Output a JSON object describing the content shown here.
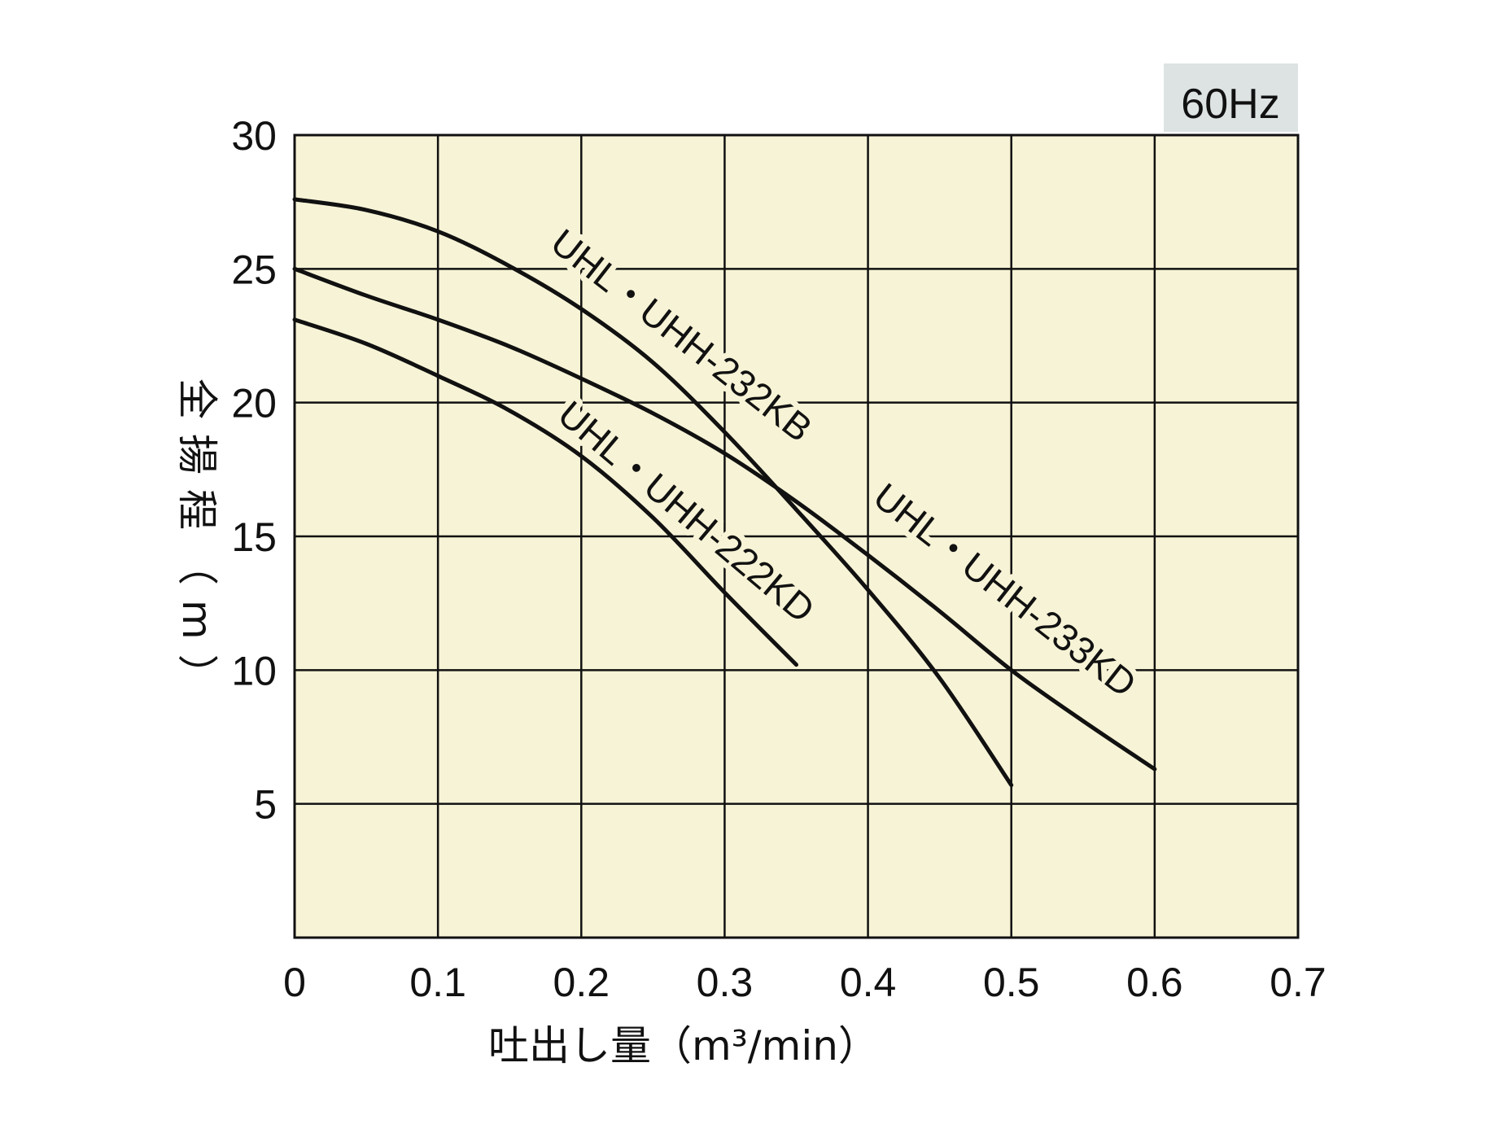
{
  "chart_data": {
    "type": "line",
    "badge": "60Hz",
    "xlabel": "吐出し量（m³/min）",
    "ylabel": "全揚程（m）",
    "xlim": [
      0,
      0.7
    ],
    "ylim": [
      0,
      30
    ],
    "x_ticks": [
      "0",
      "0.1",
      "0.2",
      "0.3",
      "0.4",
      "0.5",
      "0.6",
      "0.7"
    ],
    "y_ticks": [
      "5",
      "10",
      "15",
      "20",
      "25",
      "30"
    ],
    "grid": true,
    "series": [
      {
        "name": "UHL・UHH-232KB",
        "points": [
          [
            0,
            27.6
          ],
          [
            0.05,
            27.2
          ],
          [
            0.1,
            26.4
          ],
          [
            0.15,
            25.1
          ],
          [
            0.2,
            23.5
          ],
          [
            0.25,
            21.5
          ],
          [
            0.3,
            18.9
          ],
          [
            0.35,
            16.0
          ],
          [
            0.4,
            13.0
          ],
          [
            0.45,
            9.7
          ],
          [
            0.5,
            5.7
          ]
        ]
      },
      {
        "name": "UHL・UHH-233KD",
        "points": [
          [
            0,
            25.0
          ],
          [
            0.05,
            24.0
          ],
          [
            0.1,
            23.1
          ],
          [
            0.15,
            22.1
          ],
          [
            0.2,
            20.9
          ],
          [
            0.25,
            19.6
          ],
          [
            0.3,
            18.1
          ],
          [
            0.35,
            16.3
          ],
          [
            0.4,
            14.3
          ],
          [
            0.45,
            12.2
          ],
          [
            0.5,
            10.0
          ],
          [
            0.55,
            8.1
          ],
          [
            0.6,
            6.3
          ]
        ]
      },
      {
        "name": "UHL・UHH-222KD",
        "points": [
          [
            0,
            23.1
          ],
          [
            0.05,
            22.2
          ],
          [
            0.1,
            21.0
          ],
          [
            0.15,
            19.7
          ],
          [
            0.2,
            18.0
          ],
          [
            0.25,
            15.7
          ],
          [
            0.3,
            12.9
          ],
          [
            0.35,
            10.2
          ]
        ]
      }
    ],
    "colors": {
      "plot_bg": "#f7f3d6",
      "line": "#111111",
      "badge_bg": "#dde3e3"
    }
  }
}
